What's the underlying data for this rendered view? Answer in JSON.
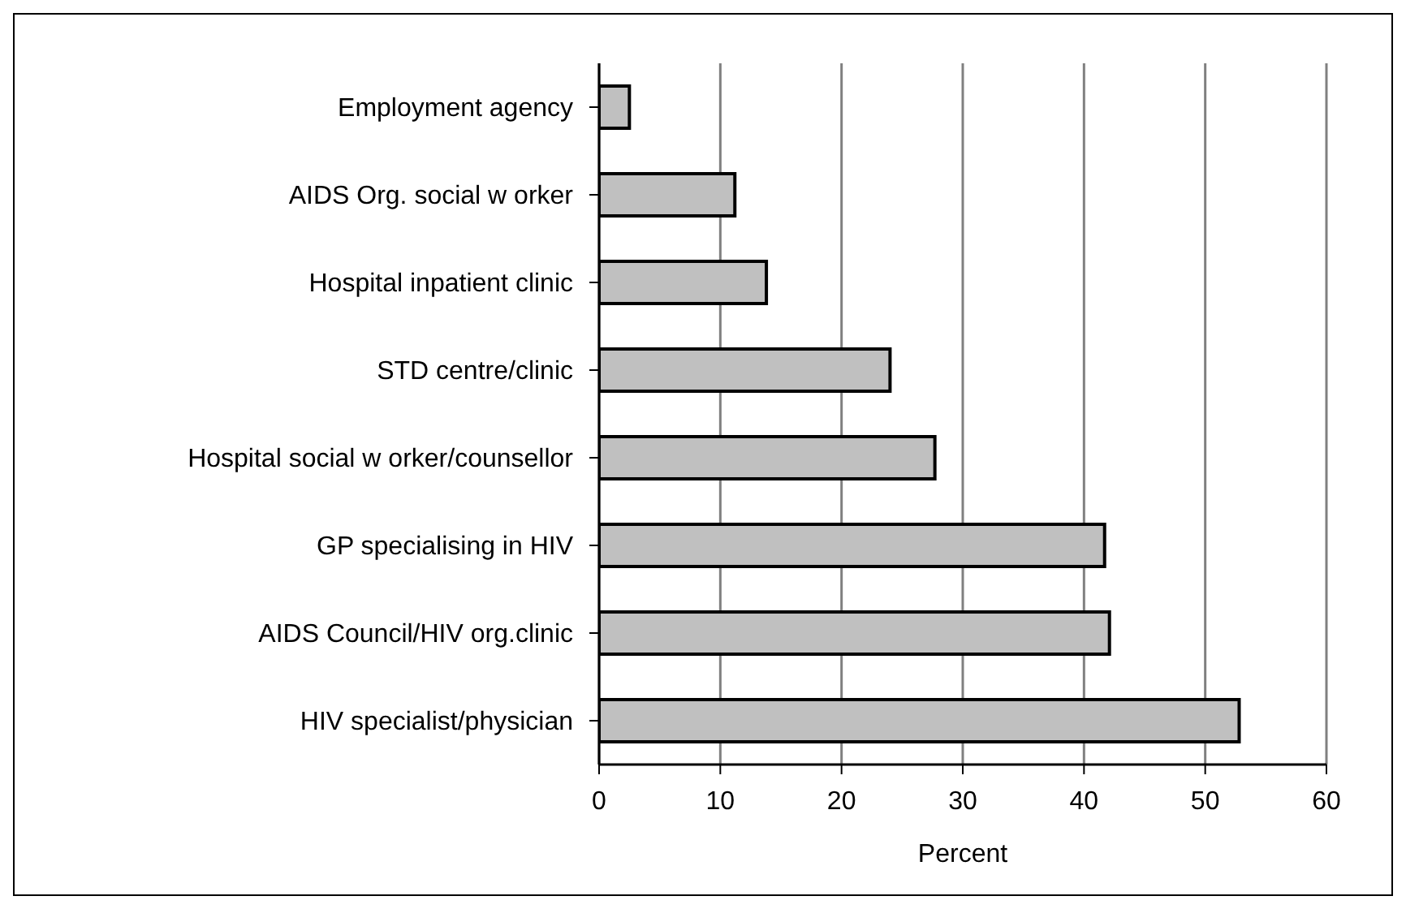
{
  "chart_data": {
    "type": "bar",
    "orientation": "horizontal",
    "xlabel": "Percent",
    "categories": [
      "Employment agency",
      "AIDS Org. social w orker",
      "Hospital inpatient clinic",
      "STD centre/clinic",
      "Hospital social w orker/counsellor",
      "GP specialising in HIV",
      "AIDS Council/HIV org.clinic",
      "HIV specialist/physician"
    ],
    "values": [
      2.5,
      11.2,
      13.8,
      24.0,
      27.7,
      41.7,
      42.1,
      52.8
    ],
    "color": "#c0c0c0",
    "xlim": [
      0,
      60
    ],
    "xticks": [
      0,
      10,
      20,
      30,
      40,
      50,
      60
    ],
    "grid": "x"
  }
}
